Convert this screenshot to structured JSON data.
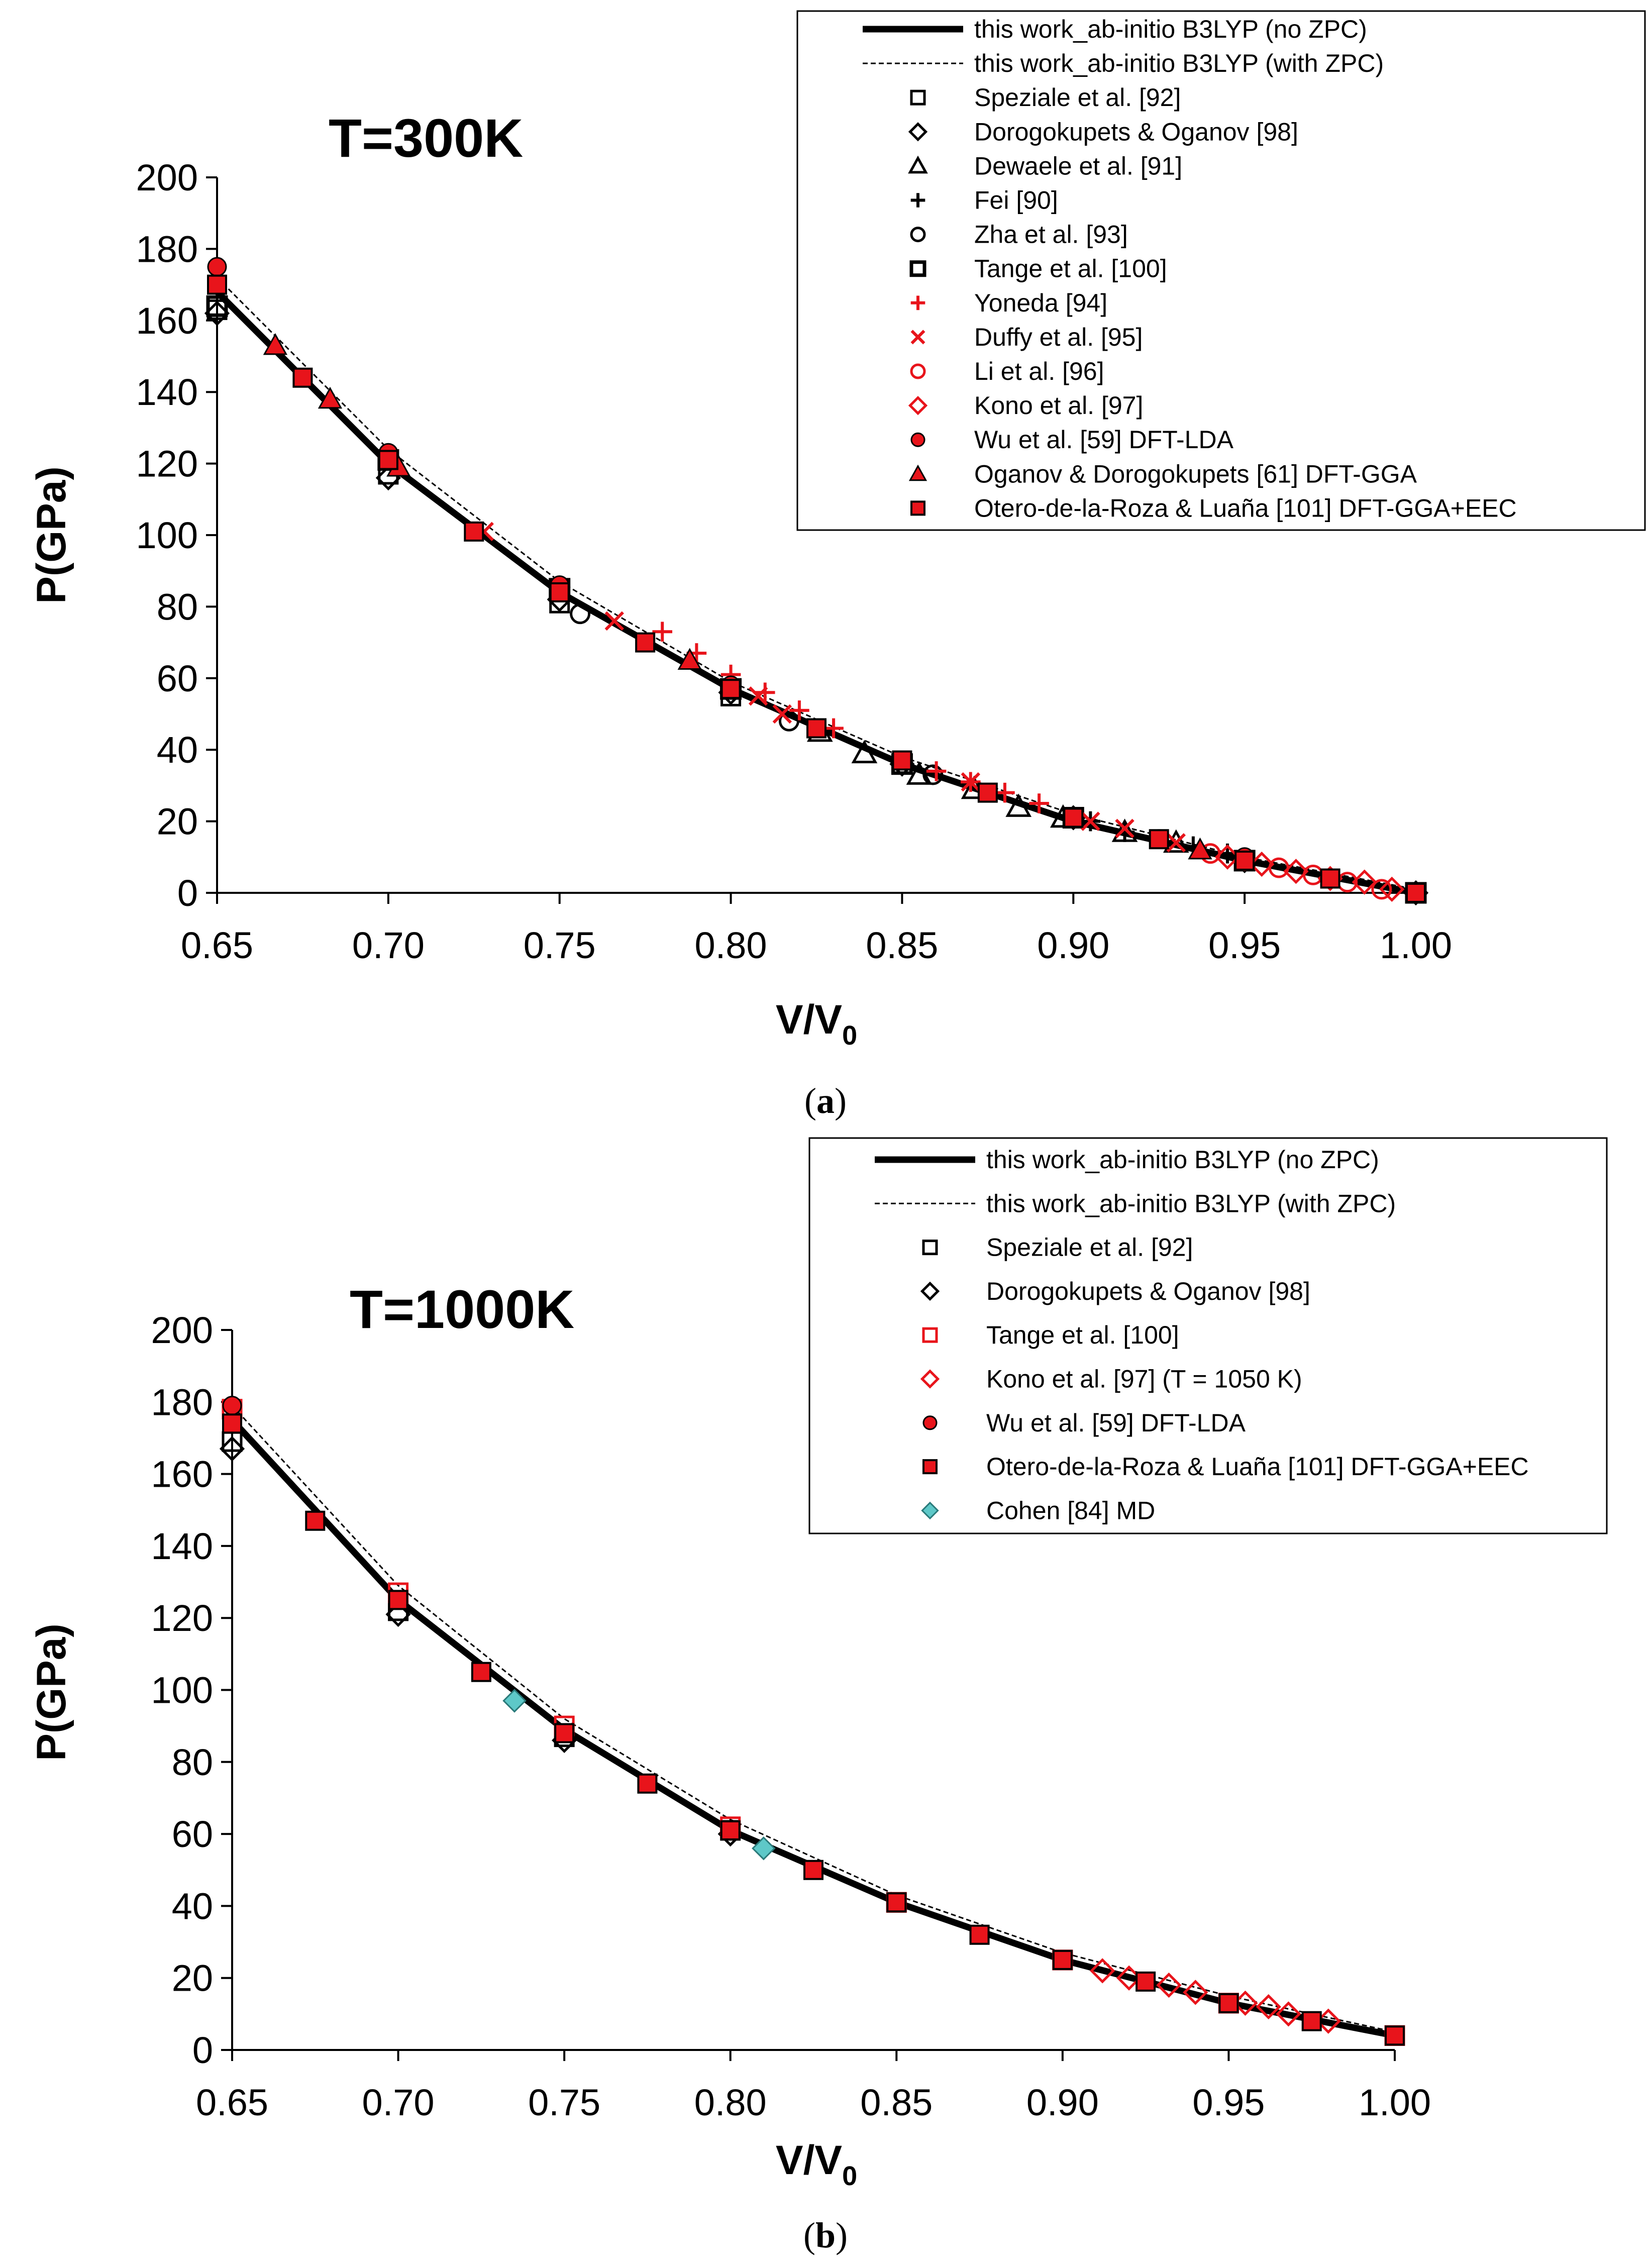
{
  "chart_data": [
    {
      "type": "scatter",
      "panel_label": "a",
      "title": "T=300K",
      "xlabel": "V/V",
      "xlabel_sub": "0",
      "ylabel": "P(GPa)",
      "xlim": [
        0.65,
        1.0
      ],
      "ylim": [
        0,
        200
      ],
      "xticks": [
        0.65,
        0.7,
        0.75,
        0.8,
        0.85,
        0.9,
        0.95,
        1.0
      ],
      "xtick_labels": [
        "0.65",
        "0.70",
        "0.75",
        "0.80",
        "0.85",
        "0.90",
        "0.95",
        "1.00"
      ],
      "yticks": [
        0,
        20,
        40,
        60,
        80,
        100,
        120,
        140,
        160,
        180,
        200
      ],
      "ytick_labels": [
        "0",
        "20",
        "40",
        "60",
        "80",
        "100",
        "120",
        "140",
        "160",
        "180",
        "200"
      ],
      "legend_position": "top-right",
      "series": [
        {
          "name": "this work_ab-initio B3LYP (no ZPC)",
          "kind": "line",
          "style": "solid-thick",
          "color": "#000000",
          "x": [
            0.65,
            0.7,
            0.75,
            0.8,
            0.85,
            0.9,
            0.95,
            1.0
          ],
          "y": [
            168,
            120,
            84,
            57,
            36,
            20,
            9,
            0
          ]
        },
        {
          "name": "this work_ab-initio B3LYP (with ZPC)",
          "kind": "line",
          "style": "dashed-thin",
          "color": "#000000",
          "x": [
            0.65,
            0.7,
            0.75,
            0.8,
            0.85,
            0.9,
            0.95,
            1.0
          ],
          "y": [
            172,
            124,
            87,
            59,
            38,
            22,
            10,
            1
          ]
        },
        {
          "name": "Speziale et al. [92]",
          "kind": "marker",
          "marker": "square",
          "color": "#000000",
          "filled": false,
          "x": [
            0.65,
            0.7,
            0.75,
            0.8,
            0.85,
            0.9,
            0.95,
            1.0
          ],
          "y": [
            163,
            117,
            81,
            55,
            36,
            21,
            9,
            0
          ]
        },
        {
          "name": "Dorogokupets & Oganov [98]",
          "kind": "marker",
          "marker": "diamond",
          "color": "#000000",
          "filled": false,
          "x": [
            0.65,
            0.7,
            0.75,
            0.8,
            0.85,
            0.9,
            0.95,
            1.0
          ],
          "y": [
            162,
            116,
            82,
            56,
            36,
            21,
            9,
            0
          ]
        },
        {
          "name": "Dewaele et al. [91]",
          "kind": "marker",
          "marker": "triangle",
          "color": "#000000",
          "filled": false,
          "x": [
            0.826,
            0.839,
            0.855,
            0.871,
            0.884,
            0.897,
            0.915,
            0.93
          ],
          "y": [
            45,
            39,
            33,
            29,
            24,
            21,
            17,
            14
          ]
        },
        {
          "name": "Fei [90]",
          "kind": "marker",
          "marker": "plus",
          "color": "#000000",
          "filled": false,
          "x": [
            0.905,
            0.915,
            0.925,
            0.935,
            0.945
          ],
          "y": [
            20,
            17,
            15,
            13,
            11
          ]
        },
        {
          "name": "Zha et al. [93]",
          "kind": "marker",
          "marker": "circle",
          "color": "#000000",
          "filled": false,
          "x": [
            0.756,
            0.817,
            0.859
          ],
          "y": [
            78,
            48,
            33
          ]
        },
        {
          "name": "Tange et al. [100]",
          "kind": "marker",
          "marker": "square-bold",
          "color": "#000000",
          "filled": false,
          "x": [
            0.65,
            0.7,
            0.75,
            0.8,
            0.85,
            0.9,
            0.95,
            1.0
          ],
          "y": [
            164,
            121,
            85,
            57,
            36,
            21,
            9,
            0
          ]
        },
        {
          "name": "Yoneda [94]",
          "kind": "marker",
          "marker": "plus",
          "color": "#e8141b",
          "filled": false,
          "x": [
            0.78,
            0.79,
            0.8,
            0.81,
            0.82,
            0.83,
            0.86,
            0.87,
            0.88,
            0.89
          ],
          "y": [
            73,
            67,
            61,
            56,
            51,
            46,
            34,
            31,
            28,
            25
          ]
        },
        {
          "name": "Duffy et al. [95]",
          "kind": "marker",
          "marker": "x",
          "color": "#e8141b",
          "filled": false,
          "x": [
            0.728,
            0.766,
            0.808,
            0.815,
            0.87,
            0.905,
            0.915,
            0.93
          ],
          "y": [
            101,
            76,
            55,
            50,
            31,
            20,
            18,
            14
          ]
        },
        {
          "name": "Li et al. [96]",
          "kind": "marker",
          "marker": "circle",
          "color": "#e8141b",
          "filled": false,
          "x": [
            0.94,
            0.95,
            0.96,
            0.97,
            0.98,
            0.99
          ],
          "y": [
            11,
            9,
            7,
            5,
            3,
            1
          ]
        },
        {
          "name": "Kono et al. [97]",
          "kind": "marker",
          "marker": "diamond",
          "color": "#e8141b",
          "filled": false,
          "x": [
            0.945,
            0.955,
            0.965,
            0.975,
            0.985,
            0.993
          ],
          "y": [
            10,
            8,
            6,
            4,
            3,
            1
          ]
        },
        {
          "name": "Wu et al. [59] DFT-LDA",
          "kind": "marker",
          "marker": "circle",
          "color": "#e8141b",
          "filled": true,
          "x": [
            0.65,
            0.7,
            0.75,
            0.8,
            0.85,
            0.9,
            0.95
          ],
          "y": [
            175,
            123,
            86,
            58,
            37,
            21,
            10
          ]
        },
        {
          "name": "Oganov & Dorogokupets [61] DFT-GGA",
          "kind": "marker",
          "marker": "triangle",
          "color": "#e8141b",
          "filled": true,
          "x": [
            0.667,
            0.683,
            0.703,
            0.788,
            0.937
          ],
          "y": [
            153,
            138,
            119,
            65,
            12
          ]
        },
        {
          "name": "Otero-de-la-Roza & Luaña [101] DFT-GGA+EEC",
          "kind": "marker",
          "marker": "square",
          "color": "#e8141b",
          "filled": true,
          "x": [
            0.65,
            0.675,
            0.7,
            0.725,
            0.75,
            0.775,
            0.8,
            0.825,
            0.85,
            0.875,
            0.9,
            0.925,
            0.95,
            0.975,
            1.0
          ],
          "y": [
            170,
            144,
            121,
            101,
            84,
            70,
            57,
            46,
            37,
            28,
            21,
            15,
            9,
            4,
            0
          ]
        }
      ]
    },
    {
      "type": "scatter",
      "panel_label": "b",
      "title": "T=1000K",
      "xlabel": "V/V",
      "xlabel_sub": "0",
      "ylabel": "P(GPa)",
      "xlim": [
        0.65,
        1.0
      ],
      "ylim": [
        0,
        200
      ],
      "xticks": [
        0.65,
        0.7,
        0.75,
        0.8,
        0.85,
        0.9,
        0.95,
        1.0
      ],
      "xtick_labels": [
        "0.65",
        "0.70",
        "0.75",
        "0.80",
        "0.85",
        "0.90",
        "0.95",
        "1.00"
      ],
      "yticks": [
        0,
        20,
        40,
        60,
        80,
        100,
        120,
        140,
        160,
        180,
        200
      ],
      "ytick_labels": [
        "0",
        "20",
        "40",
        "60",
        "80",
        "100",
        "120",
        "140",
        "160",
        "180",
        "200"
      ],
      "legend_position": "top-right",
      "series": [
        {
          "name": "this work_ab-initio B3LYP (no ZPC)",
          "kind": "line",
          "style": "solid-thick",
          "color": "#000000",
          "x": [
            0.65,
            0.7,
            0.75,
            0.8,
            0.85,
            0.9,
            0.95,
            1.0
          ],
          "y": [
            175,
            125,
            89,
            61,
            41,
            25,
            13,
            4
          ]
        },
        {
          "name": "this work_ab-initio B3LYP (with ZPC)",
          "kind": "line",
          "style": "dashed-thin",
          "color": "#000000",
          "x": [
            0.65,
            0.7,
            0.75,
            0.8,
            0.85,
            0.9,
            0.95,
            1.0
          ],
          "y": [
            179,
            129,
            92,
            64,
            43,
            27,
            15,
            5
          ]
        },
        {
          "name": "Speziale et al. [92]",
          "kind": "marker",
          "marker": "square",
          "color": "#000000",
          "filled": false,
          "x": [
            0.65,
            0.7,
            0.75,
            0.8,
            0.85,
            0.9,
            0.95,
            1.0
          ],
          "y": [
            169,
            122,
            87,
            61,
            41,
            25,
            13,
            4
          ]
        },
        {
          "name": "Dorogokupets & Oganov [98]",
          "kind": "marker",
          "marker": "diamond",
          "color": "#000000",
          "filled": false,
          "x": [
            0.65,
            0.7,
            0.75,
            0.8
          ],
          "y": [
            167,
            121,
            86,
            60
          ]
        },
        {
          "name": "Tange et al. [100]",
          "kind": "marker",
          "marker": "square",
          "color": "#e8141b",
          "filled": false,
          "x": [
            0.65,
            0.7,
            0.75,
            0.8,
            0.85,
            0.9,
            0.95,
            1.0
          ],
          "y": [
            178,
            127,
            90,
            62,
            41,
            25,
            13,
            4
          ]
        },
        {
          "name": "Kono et al. [97] (T = 1050 K)",
          "kind": "marker",
          "marker": "diamond",
          "color": "#e8141b",
          "filled": false,
          "x": [
            0.912,
            0.92,
            0.932,
            0.94,
            0.955,
            0.962,
            0.968,
            0.98
          ],
          "y": [
            22,
            20,
            18,
            16,
            13,
            12,
            10,
            8
          ]
        },
        {
          "name": "Wu et al. [59] DFT-LDA",
          "kind": "marker",
          "marker": "circle",
          "color": "#e8141b",
          "filled": true,
          "x": [
            0.65
          ],
          "y": [
            179
          ]
        },
        {
          "name": "Otero-de-la-Roza & Luaña [101] DFT-GGA+EEC",
          "kind": "marker",
          "marker": "square",
          "color": "#e8141b",
          "filled": true,
          "x": [
            0.65,
            0.675,
            0.7,
            0.725,
            0.75,
            0.775,
            0.8,
            0.825,
            0.85,
            0.875,
            0.9,
            0.925,
            0.95,
            0.975,
            1.0
          ],
          "y": [
            174,
            147,
            125,
            105,
            88,
            74,
            61,
            50,
            41,
            32,
            25,
            19,
            13,
            8,
            4
          ]
        },
        {
          "name": "Cohen [84] MD",
          "kind": "marker",
          "marker": "diamond",
          "color": "#5ec8c8",
          "filled": true,
          "x": [
            0.735,
            0.81
          ],
          "y": [
            97,
            56
          ]
        }
      ]
    }
  ]
}
